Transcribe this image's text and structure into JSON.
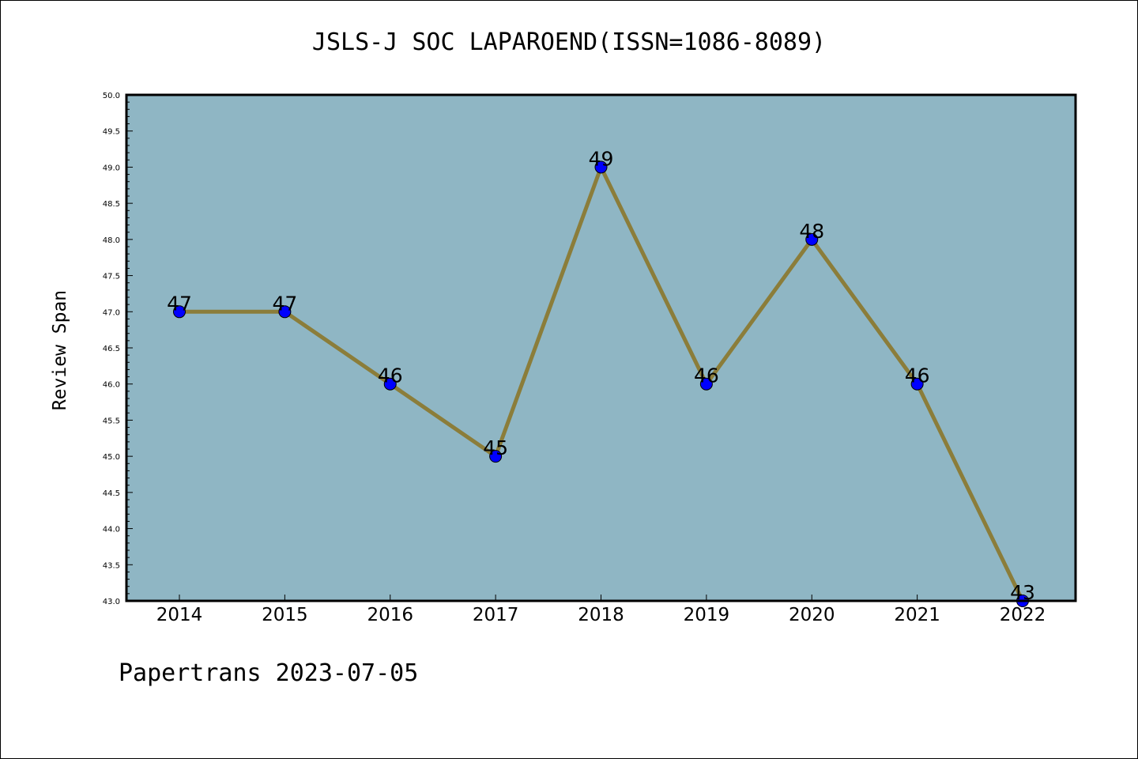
{
  "chart_data": {
    "type": "line",
    "title": "JSLS-J SOC LAPAROEND(ISSN=1086-8089)",
    "xlabel": "",
    "ylabel": "Review Span",
    "x": [
      "2014",
      "2015",
      "2016",
      "2017",
      "2018",
      "2019",
      "2020",
      "2021",
      "2022"
    ],
    "series": [
      {
        "values": [
          47,
          47,
          46,
          45,
          49,
          46,
          48,
          46,
          43
        ]
      }
    ],
    "data_labels": [
      "47",
      "47",
      "46",
      "45",
      "49",
      "46",
      "48",
      "46",
      "43"
    ],
    "ylim": [
      43.0,
      50.0
    ],
    "yticks": [
      "43.0",
      "43.5",
      "44.0",
      "44.5",
      "45.0",
      "45.5",
      "46.0",
      "46.5",
      "47.0",
      "47.5",
      "48.0",
      "48.5",
      "49.0",
      "49.5",
      "50.0"
    ],
    "grid": false,
    "legend": "none",
    "colors": {
      "plot_background": "#8fb6c4",
      "line": "#8b7d3a",
      "marker": "#0000ff"
    }
  },
  "footer": {
    "text": "Papertrans 2023-07-05"
  }
}
